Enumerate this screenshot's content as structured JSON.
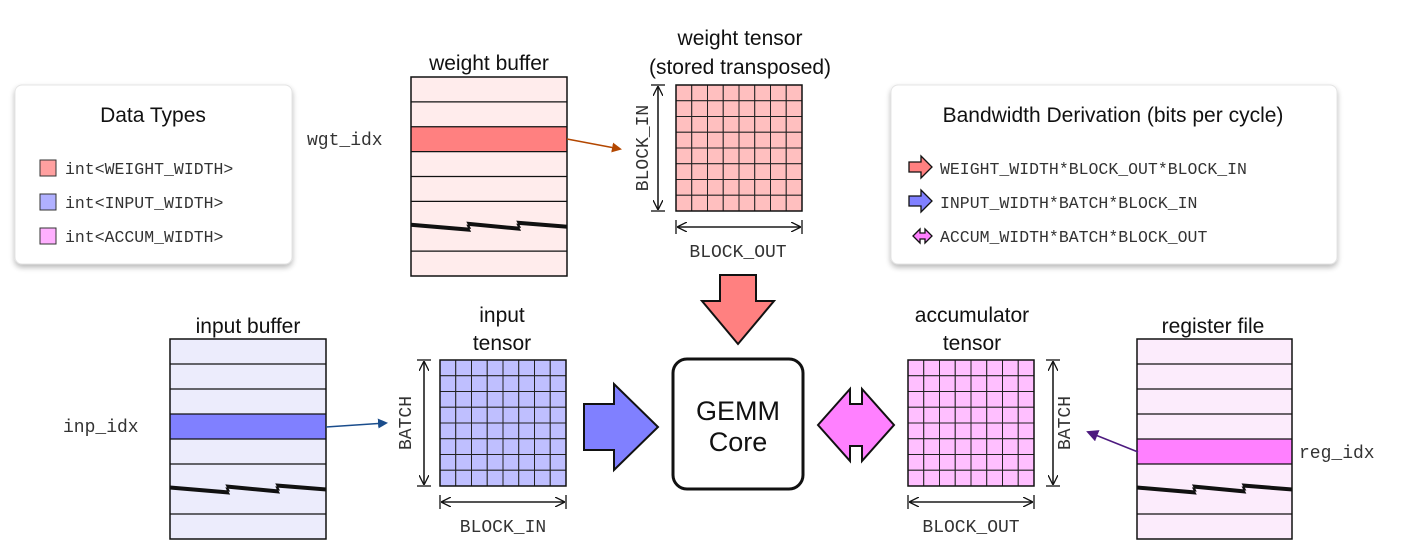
{
  "colors": {
    "weight": "#ff8080",
    "weight_light": "#ffbfbf",
    "weight_buffer_bg": "#ffecec",
    "input": "#8080ff",
    "input_light": "#bfbfff",
    "input_buffer_bg": "#ececfc",
    "accum": "#ff80ff",
    "accum_light": "#ffbfff",
    "accum_buffer_bg": "#fcecfc",
    "weight_arrow": "#b34700",
    "input_arrow": "#1a4d8c",
    "accum_arrow": "#4d1a7f"
  },
  "data_types": {
    "title": "Data Types",
    "items": [
      {
        "label": "int<WEIGHT_WIDTH>",
        "color": "#ffa0a0"
      },
      {
        "label": "int<INPUT_WIDTH>",
        "color": "#b0b0ff"
      },
      {
        "label": "int<ACCUM_WIDTH>",
        "color": "#ffb0ff"
      }
    ]
  },
  "bandwidth": {
    "title": "Bandwidth Derivation (bits per cycle)",
    "items": [
      {
        "label": "WEIGHT_WIDTH*BLOCK_OUT*BLOCK_IN",
        "color": "#ff8080"
      },
      {
        "label": "INPUT_WIDTH*BATCH*BLOCK_IN",
        "color": "#8080ff"
      },
      {
        "label": "ACCUM_WIDTH*BATCH*BLOCK_OUT",
        "color": "#ff80ff"
      }
    ]
  },
  "weight_buffer": {
    "title": "weight buffer",
    "index_label": "wgt_idx"
  },
  "weight_tensor": {
    "title_line1": "weight tensor",
    "title_line2": "(stored transposed)",
    "side_label": "BLOCK_IN",
    "bottom_label": "BLOCK_OUT"
  },
  "input_buffer": {
    "title": "input buffer",
    "index_label": "inp_idx"
  },
  "input_tensor": {
    "title_line1": "input",
    "title_line2": "tensor",
    "side_label": "BATCH",
    "bottom_label": "BLOCK_IN"
  },
  "gemm_core": {
    "line1": "GEMM",
    "line2": "Core"
  },
  "accumulator_tensor": {
    "title_line1": "accumulator",
    "title_line2": "tensor",
    "side_label": "BATCH",
    "bottom_label": "BLOCK_OUT"
  },
  "register_file": {
    "title": "register file",
    "index_label": "reg_idx"
  }
}
